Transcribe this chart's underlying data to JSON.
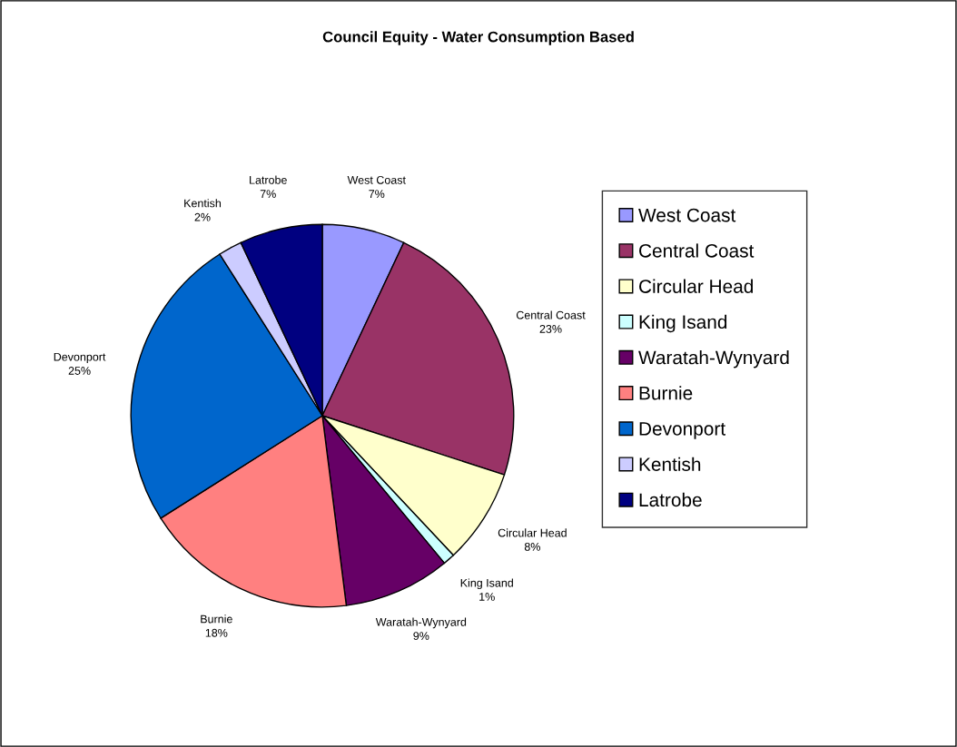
{
  "chart_data": {
    "type": "pie",
    "title": "Council Equity - Water Consumption Based",
    "categories": [
      "West Coast",
      "Central Coast",
      "Circular Head",
      "King Isand",
      "Waratah-Wynyard",
      "Burnie",
      "Devonport",
      "Kentish",
      "Latrobe"
    ],
    "values": [
      7,
      23,
      8,
      1,
      9,
      18,
      25,
      2,
      7
    ],
    "value_labels": [
      "7%",
      "23%",
      "8%",
      "1%",
      "9%",
      "18%",
      "25%",
      "2%",
      "7%"
    ],
    "colors": [
      "#9999ff",
      "#993366",
      "#ffffcc",
      "#ccffff",
      "#660066",
      "#ff8080",
      "#0066cc",
      "#ccccff",
      "#000080"
    ],
    "legend": "right"
  }
}
